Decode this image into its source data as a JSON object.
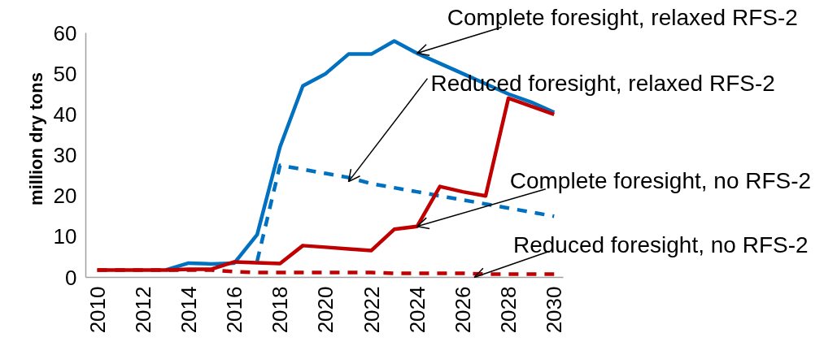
{
  "chart_data": {
    "type": "line",
    "ylabel": "million dry tons",
    "x": [
      2010,
      2011,
      2012,
      2013,
      2014,
      2015,
      2016,
      2017,
      2018,
      2019,
      2020,
      2021,
      2022,
      2023,
      2024,
      2025,
      2026,
      2027,
      2028,
      2029,
      2030
    ],
    "series": [
      {
        "color": "#0070c0",
        "line_style": "solid",
        "values": [
          null,
          null,
          null,
          1.8,
          3.5,
          3.3,
          3.5,
          10.5,
          32,
          47,
          50,
          54.8,
          54.8,
          58,
          55,
          52.5,
          50,
          47.5,
          45,
          43,
          40.5
        ]
      },
      {
        "color": "#0070c0",
        "line_style": "dashed",
        "values": [
          null,
          null,
          null,
          null,
          null,
          null,
          null,
          4,
          27.5,
          26.5,
          25.5,
          24.5,
          23,
          22,
          21,
          20,
          19,
          18,
          17,
          16,
          15
        ]
      },
      {
        "color": "#c00000",
        "line_style": "solid",
        "values": [
          1.8,
          1.8,
          1.8,
          1.8,
          2,
          2,
          3.8,
          3.6,
          3.4,
          7.8,
          7.4,
          7,
          6.6,
          11.8,
          12.5,
          22.3,
          21,
          20,
          44,
          42,
          40
        ]
      },
      {
        "color": "#c00000",
        "line_style": "dashed",
        "values": [
          1.8,
          1.8,
          1.8,
          1.8,
          1.8,
          1.8,
          1.4,
          1.2,
          1.2,
          1.2,
          1.2,
          1.2,
          1.2,
          1,
          1,
          1,
          1,
          0.8,
          0.8,
          0.8,
          0.8
        ]
      }
    ],
    "annotations": [
      {
        "text": "Complete foresight, relaxed RFS-2",
        "x": 2024,
        "y": 55
      },
      {
        "text": "Reduced foresight, relaxed RFS-2",
        "x": 2021,
        "y": 23.5
      },
      {
        "text": "Complete foresight, no RFS-2",
        "x": 2024,
        "y": 12.5
      },
      {
        "text": "Reduced foresight, no RFS-2",
        "x": 2026.5,
        "y": 0
      }
    ],
    "xlim": [
      2009.5,
      2030.4
    ],
    "ylim": [
      0,
      60
    ],
    "xticks": [
      2010,
      2012,
      2014,
      2016,
      2018,
      2020,
      2022,
      2024,
      2026,
      2028,
      2030
    ],
    "yticks": [
      0,
      10,
      20,
      30,
      40,
      50,
      60
    ],
    "grid": false,
    "marker": "none"
  }
}
